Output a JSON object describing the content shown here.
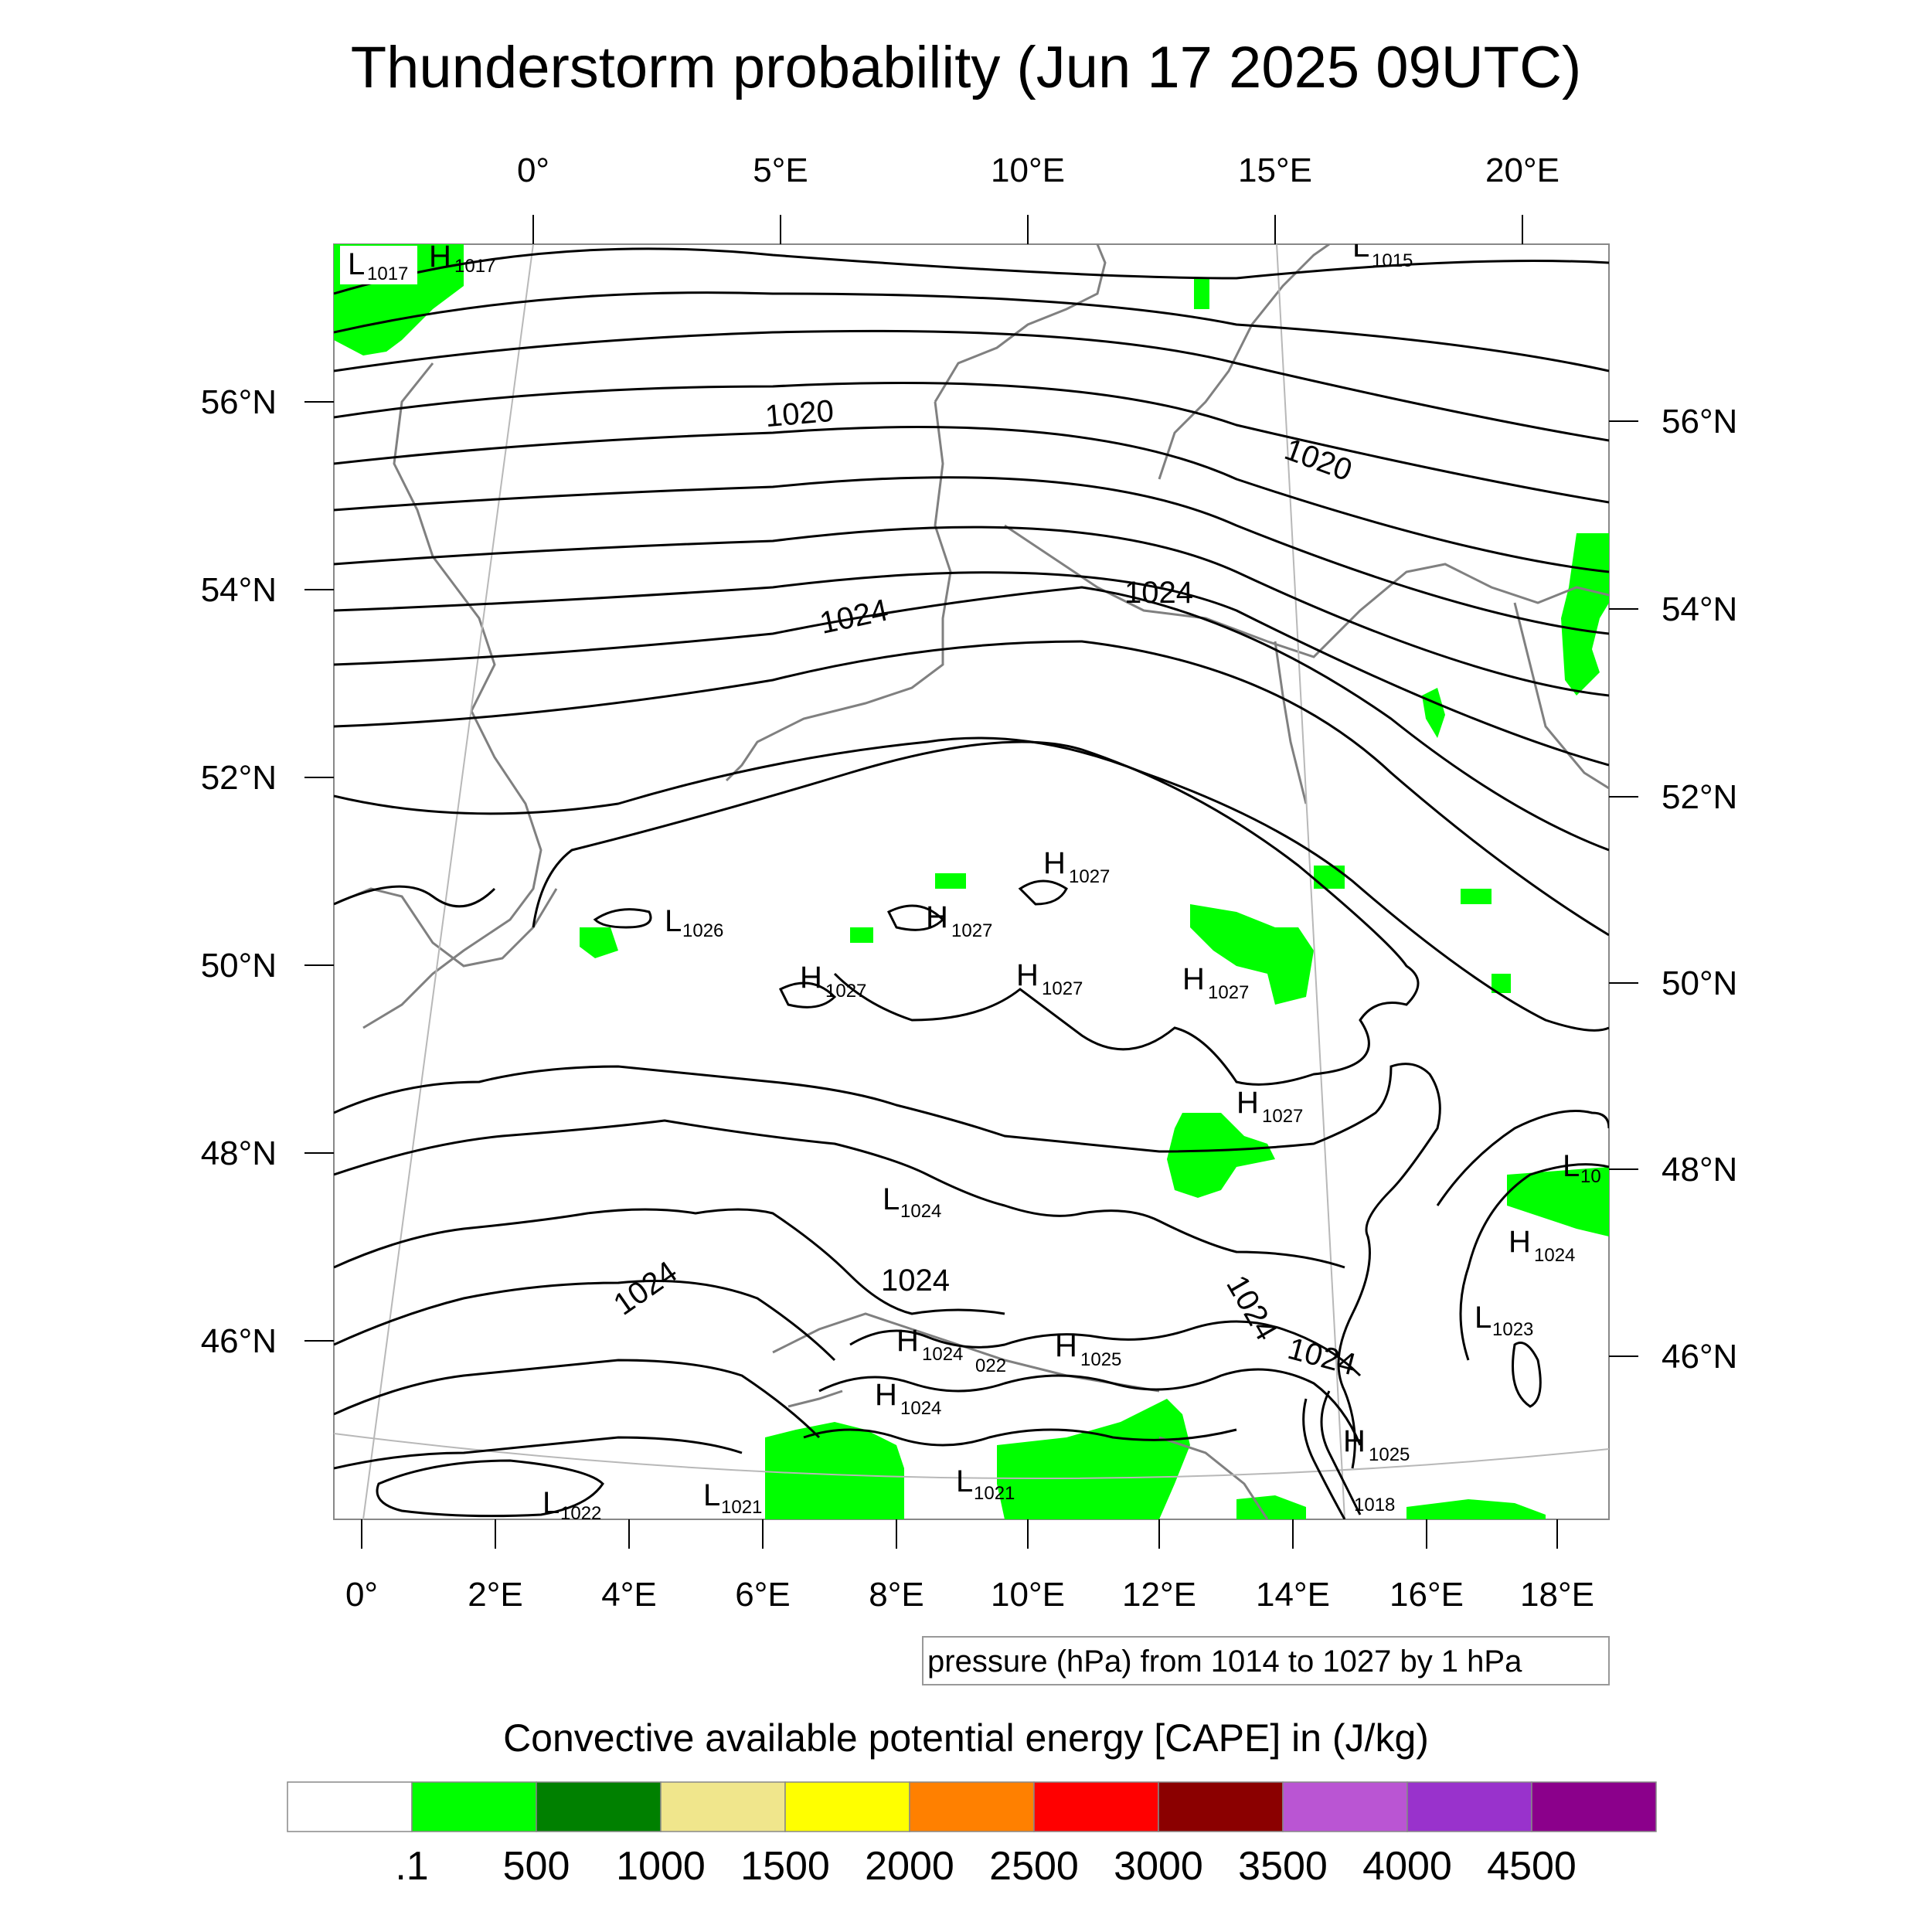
{
  "title": "Thunderstorm probability (Jun 17 2025 09UTC)",
  "top_axis": {
    "labels": [
      "0°",
      "5°E",
      "10°E",
      "15°E",
      "20°E"
    ]
  },
  "bottom_axis": {
    "labels": [
      "0°",
      "2°E",
      "4°E",
      "6°E",
      "8°E",
      "10°E",
      "12°E",
      "14°E",
      "16°E",
      "18°E"
    ]
  },
  "left_axis": {
    "labels": [
      "56°N",
      "54°N",
      "52°N",
      "50°N",
      "48°N",
      "46°N"
    ]
  },
  "right_axis": {
    "labels": [
      "56°N",
      "54°N",
      "52°N",
      "50°N",
      "48°N",
      "46°N"
    ]
  },
  "contour_labels": [
    {
      "text": "1020"
    },
    {
      "text": "1020"
    },
    {
      "text": "1024"
    },
    {
      "text": "1024"
    },
    {
      "text": "1024"
    },
    {
      "text": "1024"
    },
    {
      "text": "1024"
    },
    {
      "text": "1024"
    }
  ],
  "pressure_centers": [
    {
      "type": "L",
      "value": "1017"
    },
    {
      "type": "H",
      "value": "1017"
    },
    {
      "type": "L",
      "value": "1015"
    },
    {
      "type": "H",
      "value": "1027"
    },
    {
      "type": "H",
      "value": "1027"
    },
    {
      "type": "L",
      "value": "1026"
    },
    {
      "type": "H",
      "value": "1027"
    },
    {
      "type": "H",
      "value": "1027"
    },
    {
      "type": "H",
      "value": "1027"
    },
    {
      "type": "H",
      "value": "1027"
    },
    {
      "type": "L",
      "value": "1024"
    },
    {
      "type": "L",
      "value": "10"
    },
    {
      "type": "H",
      "value": "1024"
    },
    {
      "type": "L",
      "value": "1023"
    },
    {
      "type": "H",
      "value": "1024"
    },
    {
      "type": "H",
      "value": "1025"
    },
    {
      "type": "L",
      "value": "022"
    },
    {
      "type": "H",
      "value": "1024"
    },
    {
      "type": "H",
      "value": "1025"
    },
    {
      "type": "L",
      "value": "1022"
    },
    {
      "type": "L",
      "value": "1021"
    },
    {
      "type": "L",
      "value": "1021"
    },
    {
      "type": "L",
      "value": "1018"
    }
  ],
  "contour_info": "pressure (hPa) from 1014 to 1027 by 1 hPa",
  "legend": {
    "title": "Convective available potential energy [CAPE] in (J/kg)",
    "colors": [
      "#ffffff",
      "#00ff00",
      "#008000",
      "#f0e68c",
      "#ffff00",
      "#ff8000",
      "#ff0000",
      "#8b0000",
      "#ba55d3",
      "#9932cc",
      "#8b008b"
    ],
    "labels": [
      ".1",
      "500",
      "1000",
      "1500",
      "2000",
      "2500",
      "3000",
      "3500",
      "4000",
      "4500"
    ]
  },
  "colors": {
    "cape_low": "#00ff00",
    "coast": "#808080",
    "isobar": "#000000"
  }
}
